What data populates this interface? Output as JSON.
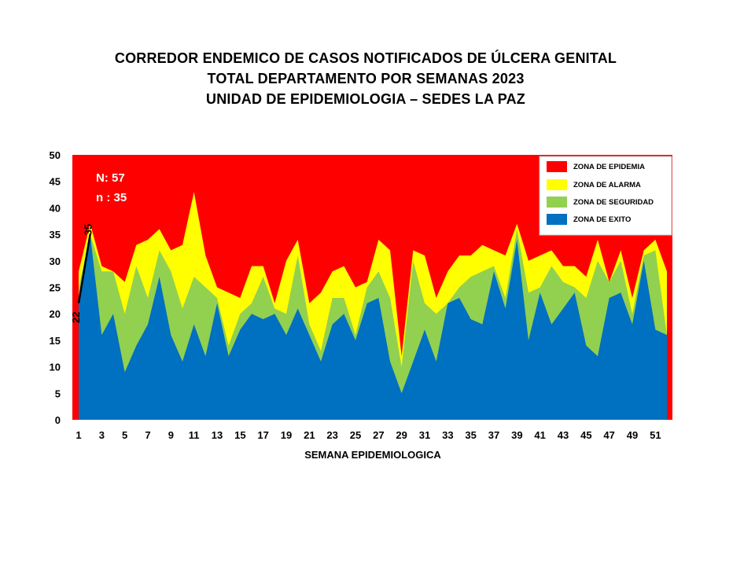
{
  "chart_data": {
    "type": "area",
    "title_lines": [
      "CORREDOR  ENDEMICO  DE CASOS NOTIFICADOS  DE ÚLCERA GENITAL",
      "TOTAL DEPARTAMENTO  POR SEMANAS  2023",
      "UNIDAD  DE EPIDEMIOLOGIA  – SEDES LA PAZ"
    ],
    "xlabel": "SEMANA EPIDEMIOLOGICA",
    "ylabel": "",
    "ylim": [
      0,
      50
    ],
    "yticks": [
      0,
      5,
      10,
      15,
      20,
      25,
      30,
      35,
      40,
      45,
      50
    ],
    "xlim": [
      1,
      52
    ],
    "xticks": [
      1,
      3,
      5,
      7,
      9,
      11,
      13,
      15,
      17,
      19,
      21,
      23,
      25,
      27,
      29,
      31,
      33,
      35,
      37,
      39,
      41,
      43,
      45,
      47,
      49,
      51
    ],
    "legend_position": "top-right",
    "annotations": [
      "N: 57",
      "n : 35"
    ],
    "weeks": [
      1,
      2,
      3,
      4,
      5,
      6,
      7,
      8,
      9,
      10,
      11,
      12,
      13,
      14,
      15,
      16,
      17,
      18,
      19,
      20,
      21,
      22,
      23,
      24,
      25,
      26,
      27,
      28,
      29,
      30,
      31,
      32,
      33,
      34,
      35,
      36,
      37,
      38,
      39,
      40,
      41,
      42,
      43,
      44,
      45,
      46,
      47,
      48,
      49,
      50,
      51,
      52
    ],
    "series": [
      {
        "name": "ZONA DE EPIDEMIA",
        "color": "#ff0000",
        "values": [
          50,
          50,
          50,
          50,
          50,
          50,
          50,
          50,
          50,
          50,
          50,
          50,
          50,
          50,
          50,
          50,
          50,
          50,
          50,
          50,
          50,
          50,
          50,
          50,
          50,
          50,
          50,
          50,
          50,
          50,
          50,
          50,
          50,
          50,
          50,
          50,
          50,
          50,
          50,
          50,
          50,
          50,
          50,
          50,
          50,
          50,
          50,
          50,
          50,
          50,
          50,
          50
        ]
      },
      {
        "name": "ZONA DE ALARMA",
        "color": "#ffff00",
        "values": [
          28,
          37,
          29,
          28,
          26,
          33,
          34,
          36,
          32,
          33,
          43,
          31,
          25,
          24,
          23,
          29,
          29,
          22,
          30,
          34,
          22,
          24,
          28,
          29,
          25,
          26,
          34,
          32,
          12,
          32,
          31,
          23,
          28,
          31,
          31,
          33,
          32,
          31,
          37,
          30,
          31,
          32,
          29,
          29,
          27,
          34,
          26,
          32,
          23,
          32,
          34,
          28
        ]
      },
      {
        "name": "ZONA DE  SEGURIDAD",
        "color": "#92d050",
        "values": [
          25,
          35,
          28,
          28,
          20,
          29,
          23,
          32,
          28,
          21,
          27,
          25,
          23,
          14,
          20,
          22,
          27,
          21,
          20,
          31,
          18,
          13,
          23,
          23,
          16,
          25,
          28,
          23,
          10,
          30,
          22,
          20,
          22,
          25,
          27,
          28,
          29,
          23,
          36,
          24,
          25,
          29,
          26,
          25,
          23,
          30,
          26,
          30,
          20,
          31,
          32,
          16
        ]
      },
      {
        "name": "ZONA DE  EXITO",
        "color": "#0070c0",
        "values": [
          22,
          35,
          16,
          20,
          9,
          14,
          18,
          27,
          16,
          11,
          18,
          12,
          22,
          12,
          17,
          20,
          19,
          20,
          16,
          21,
          16,
          11,
          18,
          20,
          15,
          22,
          23,
          11,
          5,
          11,
          17,
          11,
          22,
          23,
          19,
          18,
          28,
          21,
          34,
          15,
          24,
          18,
          21,
          24,
          14,
          12,
          23,
          24,
          18,
          30,
          17,
          16
        ]
      }
    ],
    "observed_series": {
      "name": "",
      "color": "#000000",
      "values": [
        22,
        35
      ],
      "labels": [
        "22",
        "35"
      ]
    }
  }
}
